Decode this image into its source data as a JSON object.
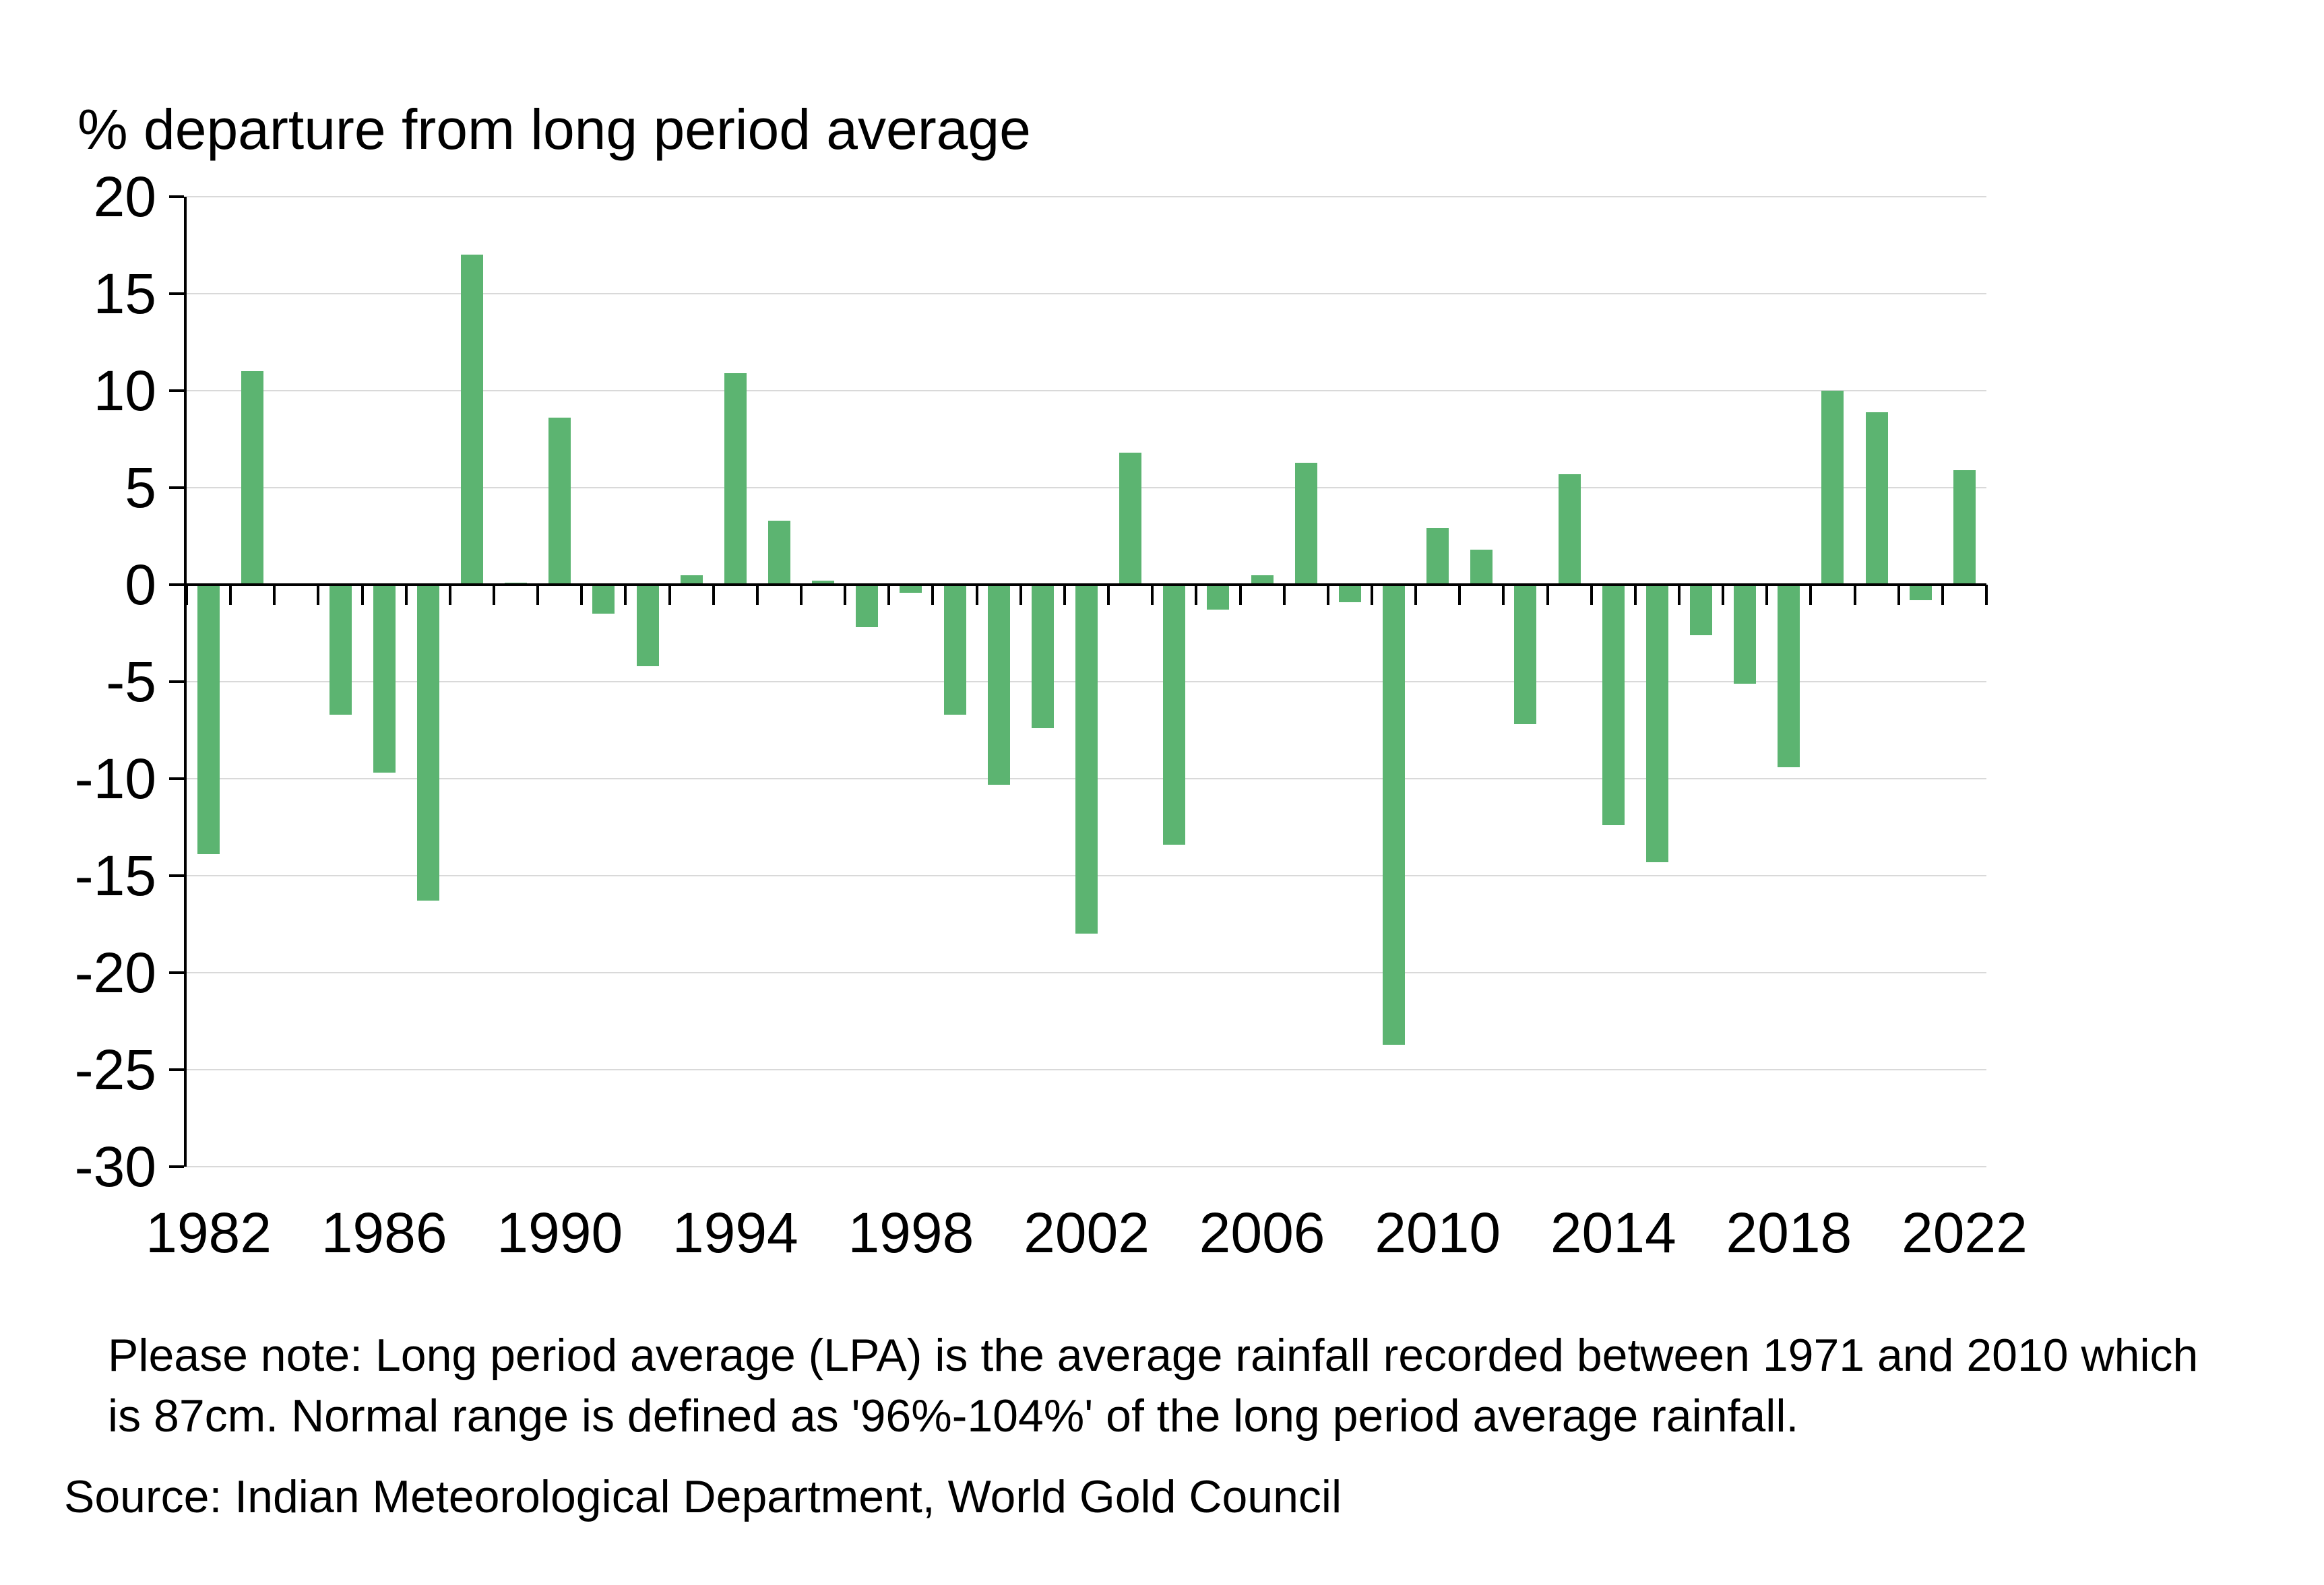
{
  "page": {
    "background": "#ffffff"
  },
  "chart_data": {
    "type": "bar",
    "title": "% departure from long period average",
    "categories": [
      1982,
      1983,
      1984,
      1985,
      1986,
      1987,
      1988,
      1989,
      1990,
      1991,
      1992,
      1993,
      1994,
      1995,
      1996,
      1997,
      1998,
      1999,
      2000,
      2001,
      2002,
      2003,
      2004,
      2005,
      2006,
      2007,
      2008,
      2009,
      2010,
      2011,
      2012,
      2013,
      2014,
      2015,
      2016,
      2017,
      2018,
      2019,
      2020,
      2021,
      2022
    ],
    "values": [
      -13.9,
      11.0,
      0.0,
      -6.7,
      -9.7,
      -16.3,
      17.0,
      0.1,
      8.6,
      -1.5,
      -4.2,
      0.5,
      10.9,
      3.3,
      0.2,
      -2.2,
      -0.4,
      -6.7,
      -10.3,
      -7.4,
      -18.0,
      6.8,
      -13.4,
      -1.3,
      0.5,
      6.3,
      -0.9,
      -23.7,
      2.9,
      1.8,
      -7.2,
      5.7,
      -12.4,
      -14.3,
      -2.6,
      -5.1,
      -9.4,
      10.0,
      8.9,
      -0.8,
      5.9
    ],
    "x_tick_labels": [
      "1982",
      "1986",
      "1990",
      "1994",
      "1998",
      "2002",
      "2006",
      "2010",
      "2014",
      "2018",
      "2022"
    ],
    "y_ticks": [
      20,
      15,
      10,
      5,
      0,
      -5,
      -10,
      -15,
      -20,
      -25,
      -30
    ],
    "ylim": [
      -30,
      20
    ],
    "xlabel": "",
    "ylabel": "",
    "grid": true,
    "legend_position": "none",
    "bar_color": "#5cb471",
    "gridline_color": "#d9d9d9",
    "axis_color": "#000000"
  },
  "notes": {
    "line1": "Please note: Long period average (LPA) is the average rainfall recorded between 1971 and 2010 which",
    "line2": "is 87cm. Normal range is defined as '96%-104%' of the long period average rainfall.",
    "source": "Source: Indian Meteorological Department, World Gold Council"
  }
}
